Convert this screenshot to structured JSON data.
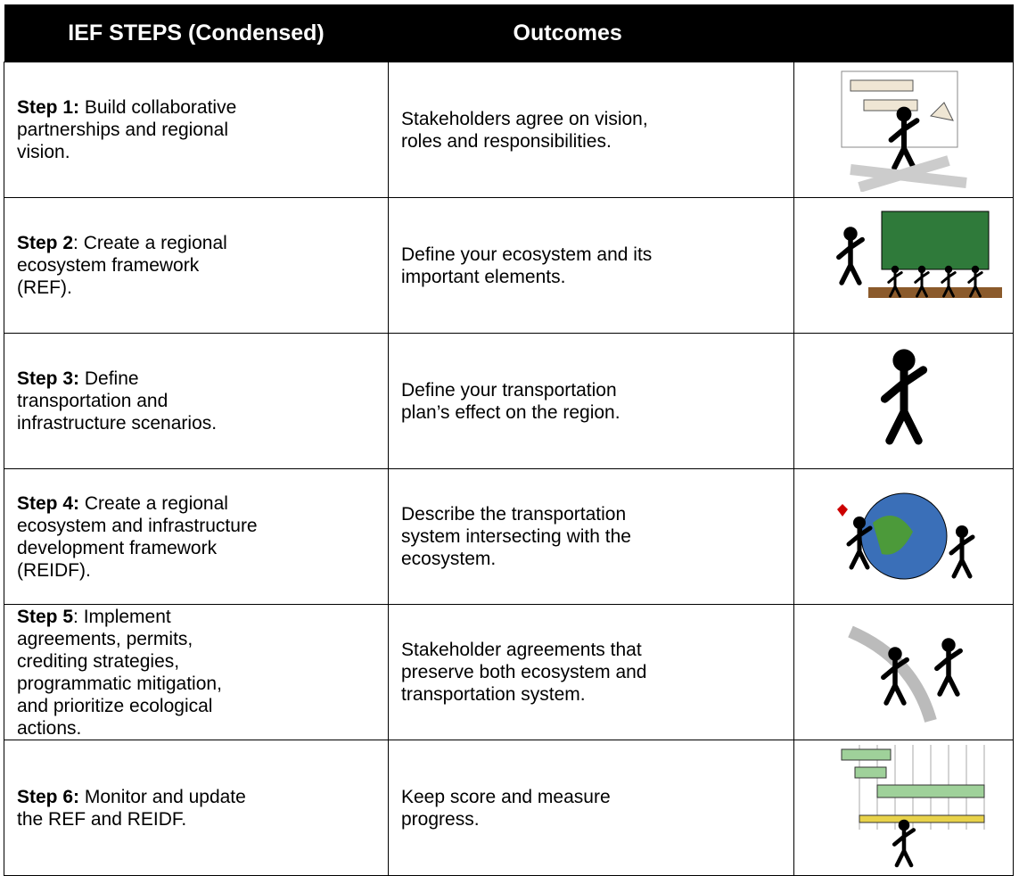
{
  "table": {
    "header": [
      "IEF STEPS (Condensed)",
      "Outcomes"
    ],
    "rows": [
      {
        "step_label": "Step 1:",
        "step_text": " Build collaborative partnerships and regional vision.",
        "outcome": "Stakeholders agree on vision, roles and responsibilities."
      },
      {
        "step_label": "Step 2",
        "step_text": ": Create a regional ecosystem framework (REF).",
        "outcome": "Define your ecosystem and its important elements."
      },
      {
        "step_label": "Step 3:",
        "step_text": " Define transportation and infrastructure scenarios.",
        "outcome": "Define your transportation plan’s effect on the region."
      },
      {
        "step_label": "Step 4:",
        "step_text": " Create a regional ecosystem and infrastructure development framework (REIDF).",
        "outcome": "Describe the transportation system intersecting with the ecosystem."
      },
      {
        "step_label": "Step 5",
        "step_text": ": Implement agreements, permits, crediting strategies, programmatic mitigation, and prioritize ecological actions.",
        "outcome": "Stakeholder agreements that preserve both ecosystem and transportation system."
      },
      {
        "step_label": "Step 6:",
        "step_text": " Monitor and update the REF and REIDF.",
        "outcome": "Keep score and measure progress."
      }
    ]
  }
}
